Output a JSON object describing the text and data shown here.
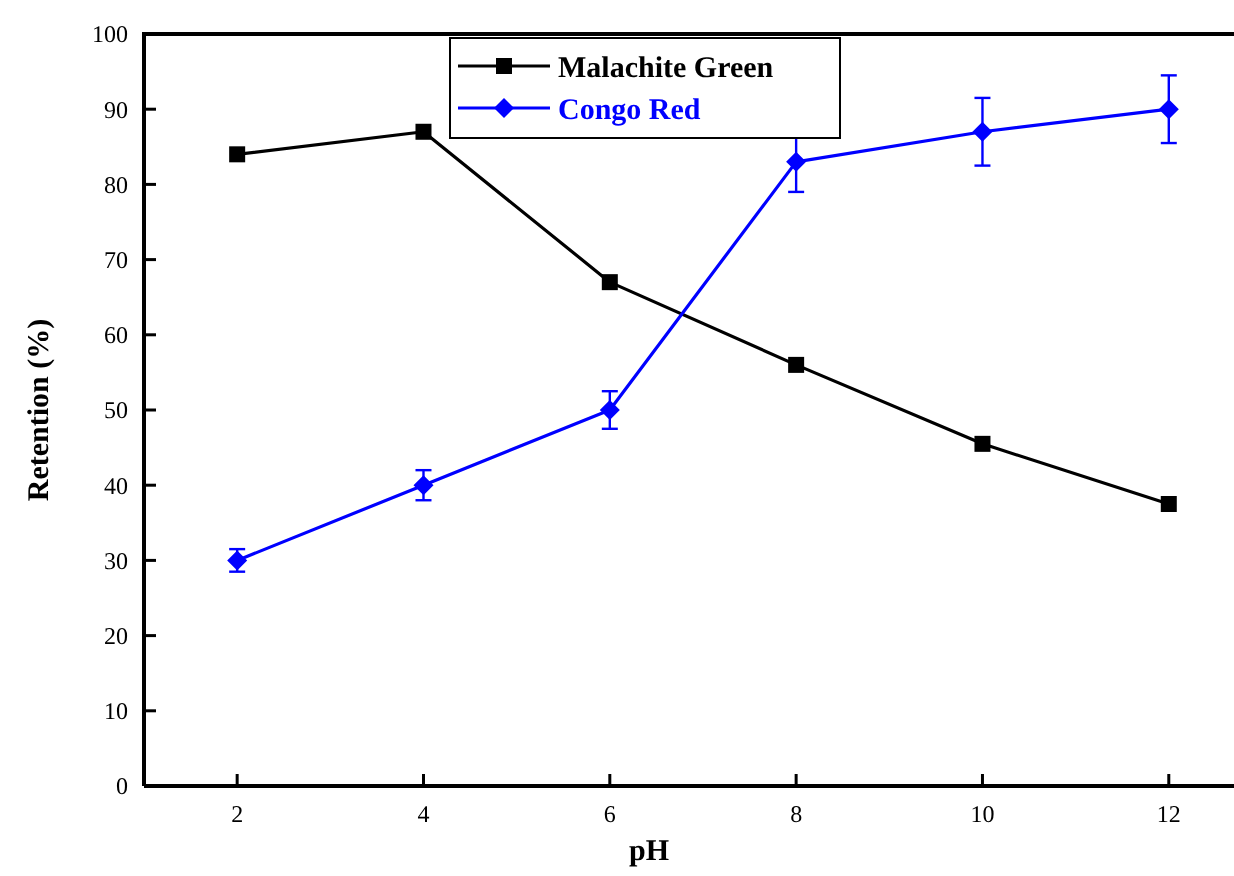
{
  "chart_data": {
    "type": "line",
    "xlabel": "pH",
    "ylabel": "Retention (%)",
    "x": [
      2,
      4,
      6,
      8,
      10,
      12
    ],
    "series": [
      {
        "name": "Malachite Green",
        "color": "#000000",
        "marker": "square",
        "values": [
          84,
          87,
          67,
          56,
          45.5,
          37.5
        ]
      },
      {
        "name": "Congo Red",
        "color": "#0000ff",
        "marker": "diamond",
        "values": [
          30,
          40,
          50,
          83,
          87,
          90
        ],
        "errors": [
          1.5,
          2,
          2.5,
          4,
          4.5,
          4.5
        ]
      }
    ],
    "xlim": [
      1,
      12.7
    ],
    "xticks": [
      2,
      4,
      6,
      8,
      10,
      12
    ],
    "ylim": [
      0,
      100
    ],
    "yticks": [
      0,
      10,
      20,
      30,
      40,
      50,
      60,
      70,
      80,
      90,
      100
    ],
    "grid": false,
    "legend": "top",
    "line_style": "solid"
  }
}
